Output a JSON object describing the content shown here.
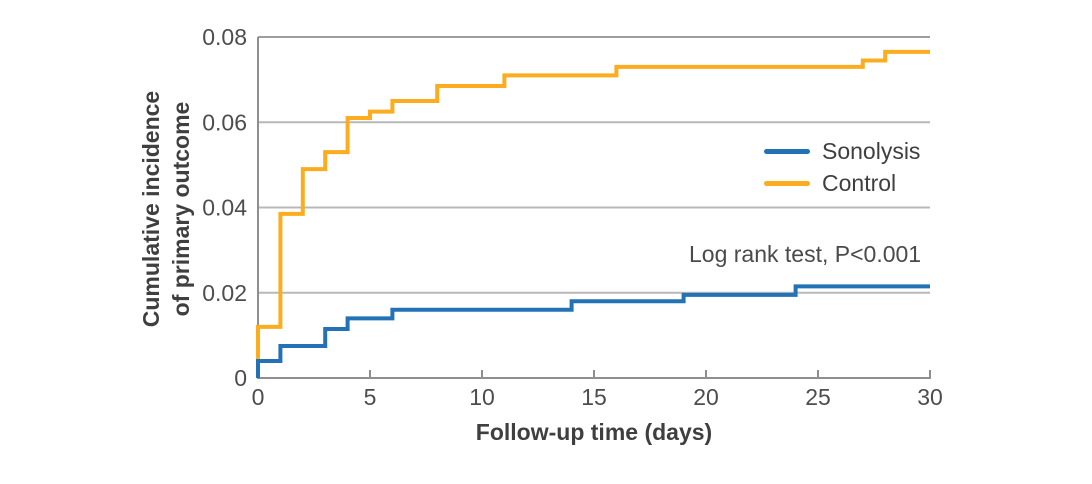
{
  "figure": {
    "y_axis_title_line1": "Cumulative incidence",
    "y_axis_title_line2": "of primary outcome",
    "x_axis_title": "Follow-up time (days)",
    "annotation": "Log rank test, P<0.001"
  },
  "colors": {
    "sonolysis": "#2272b5",
    "control": "#fbad1f",
    "spine": "#8f8f8f",
    "gridline": "#b8b8b8",
    "top_gridline": "#9e9e9e",
    "tick_text": "#4d4d4d"
  },
  "chart_data": {
    "type": "line",
    "subtype": "step",
    "title": "",
    "xlabel": "Follow-up time (days)",
    "ylabel": "Cumulative incidence of primary outcome",
    "xlim": [
      0,
      30
    ],
    "ylim": [
      0,
      0.08
    ],
    "xticks": [
      0,
      5,
      10,
      15,
      20,
      25,
      30
    ],
    "xtick_labels": [
      "0",
      "5",
      "10",
      "15",
      "20",
      "25",
      "30"
    ],
    "yticks": [
      0,
      0.02,
      0.04,
      0.06,
      0.08
    ],
    "ytick_labels": [
      "0",
      "0.02",
      "0.04",
      "0.06",
      "0.08"
    ],
    "grid": true,
    "legend_position": "inside-upper-right",
    "annotation": "Log rank test, P<0.001",
    "series": [
      {
        "name": "Control",
        "color": "#fbad1f",
        "steps": [
          [
            0,
            0
          ],
          [
            0,
            0.012
          ],
          [
            1,
            0.0385
          ],
          [
            2,
            0.049
          ],
          [
            3,
            0.053
          ],
          [
            4,
            0.061
          ],
          [
            5,
            0.0625
          ],
          [
            6,
            0.065
          ],
          [
            8,
            0.0685
          ],
          [
            11,
            0.071
          ],
          [
            16,
            0.073
          ],
          [
            27,
            0.0745
          ],
          [
            28,
            0.0765
          ],
          [
            30,
            0.0765
          ]
        ]
      },
      {
        "name": "Sonolysis",
        "color": "#2272b5",
        "steps": [
          [
            0,
            0
          ],
          [
            0,
            0.004
          ],
          [
            1,
            0.0075
          ],
          [
            3,
            0.0115
          ],
          [
            4,
            0.014
          ],
          [
            6,
            0.016
          ],
          [
            14,
            0.018
          ],
          [
            19,
            0.0195
          ],
          [
            24,
            0.0215
          ],
          [
            30,
            0.0215
          ]
        ]
      }
    ]
  }
}
